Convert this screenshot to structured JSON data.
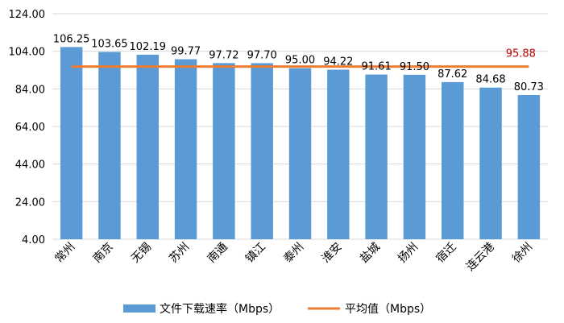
{
  "chart_data": {
    "type": "bar",
    "categories": [
      "常州",
      "南京",
      "无锡",
      "苏州",
      "南通",
      "镇江",
      "泰州",
      "淮安",
      "盐城",
      "扬州",
      "宿迁",
      "连云港",
      "徐州"
    ],
    "series": [
      {
        "name": "文件下载速率（Mbps）",
        "values": [
          106.25,
          103.65,
          102.19,
          99.77,
          97.72,
          97.7,
          95.0,
          94.22,
          91.61,
          91.5,
          87.62,
          84.68,
          80.73
        ],
        "value_labels": [
          "106.25",
          "103.65",
          "102.19",
          "99.77",
          "97.72",
          "97.70",
          "95.00",
          "94.22",
          "91.61",
          "91.50",
          "87.62",
          "84.68",
          "80.73"
        ],
        "color": "#5b9bd5"
      }
    ],
    "average": {
      "name": "平均值（Mbps）",
      "value": 95.88,
      "label": "95.88",
      "color": "#ed7d31",
      "label_color": "#c00000"
    },
    "y_ticks": [
      "4.00",
      "24.00",
      "44.00",
      "64.00",
      "84.00",
      "104.00",
      "124.00"
    ],
    "ylim": [
      4,
      124
    ],
    "grid": true,
    "gridline_color": "#d9d9d9",
    "legend_position": "bottom",
    "title": "",
    "xlabel": "",
    "ylabel": ""
  }
}
